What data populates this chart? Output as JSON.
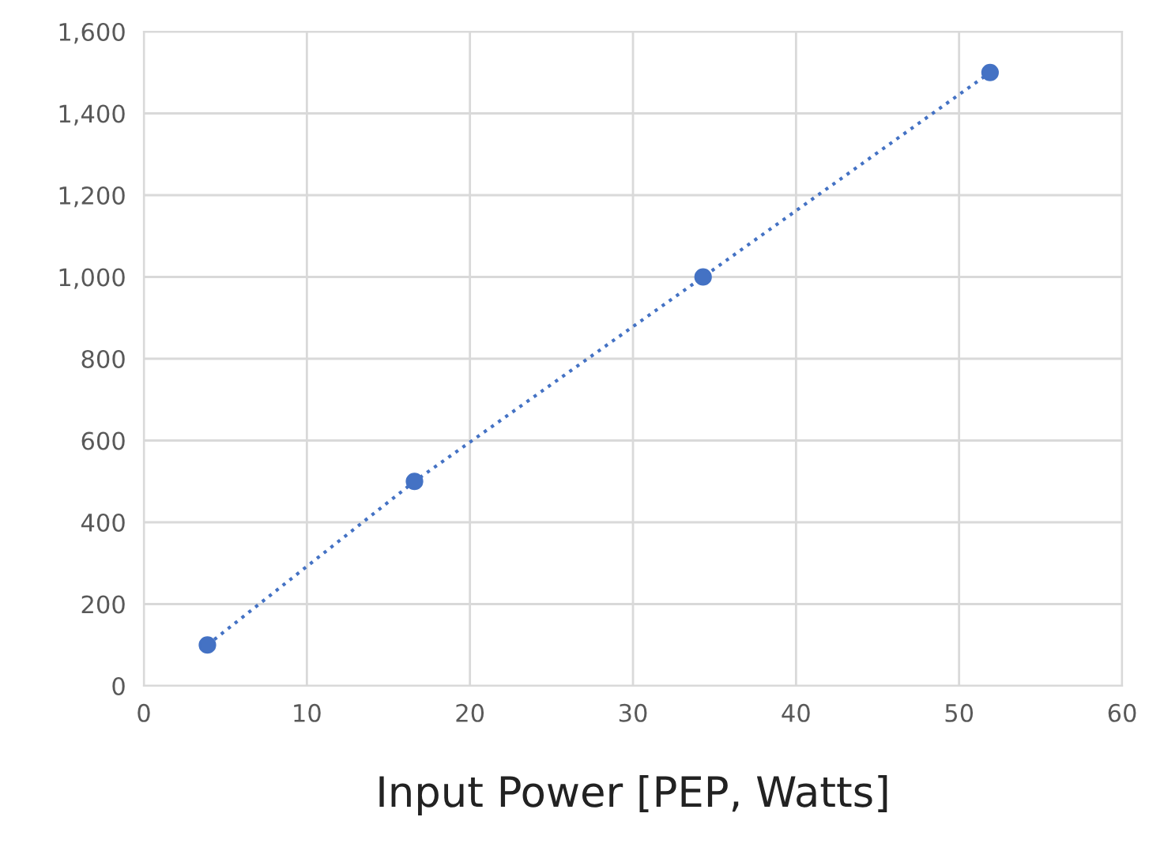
{
  "chart_data": {
    "type": "line",
    "xlabel": "Input Power [PEP, Watts]",
    "series": [
      {
        "color": "#4472c4",
        "x": [
          3.9,
          16.6,
          34.3,
          51.9
        ],
        "values": [
          100,
          500,
          1000,
          1500
        ]
      }
    ],
    "xlim": [
      0,
      60
    ],
    "xticks": [
      0,
      10,
      20,
      30,
      40,
      50,
      60
    ],
    "ylim": [
      0,
      1600
    ],
    "yticks": [
      0,
      {
        "value": 200,
        "label": "200"
      },
      {
        "value": 400,
        "label": "400"
      },
      {
        "value": 600,
        "label": "600"
      },
      {
        "value": 800,
        "label": "800"
      },
      {
        "value": 1000,
        "label": "1,000"
      },
      {
        "value": 1200,
        "label": "1,200"
      },
      {
        "value": 1400,
        "label": "1,400"
      },
      {
        "value": 1600,
        "label": "1,600"
      }
    ],
    "grid": true,
    "marker": "circle",
    "line_style": "dotted"
  }
}
